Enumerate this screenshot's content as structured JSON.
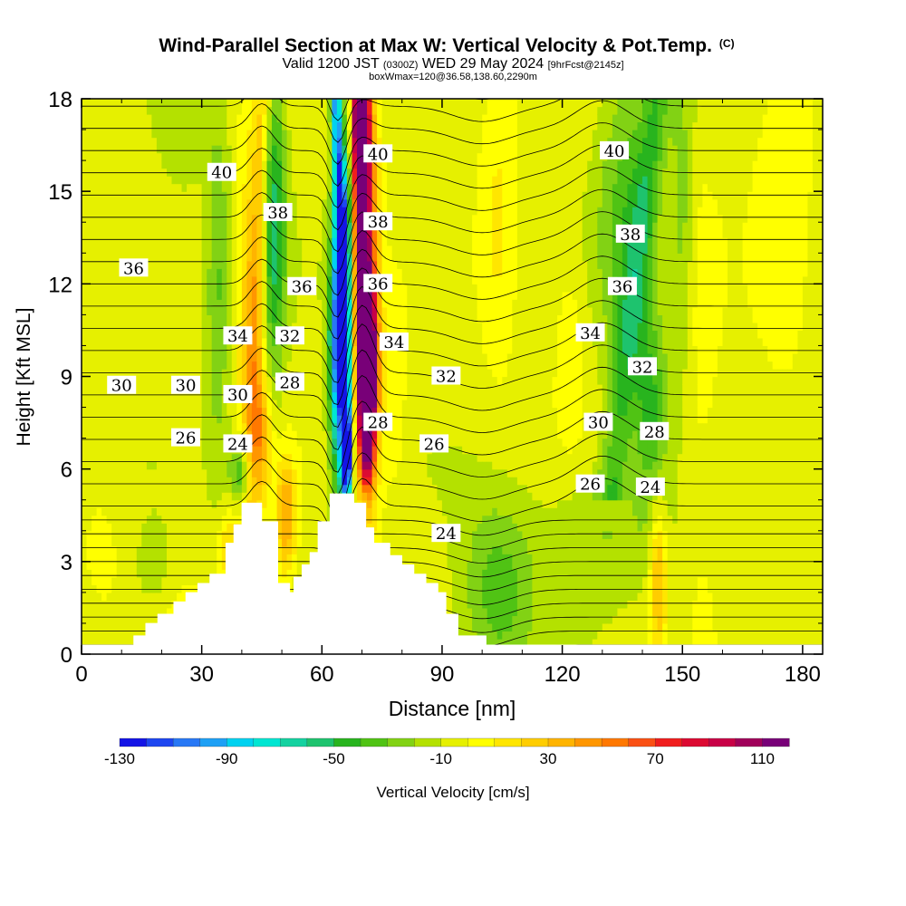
{
  "chart_data": {
    "type": "heatmap",
    "title": "Wind-Parallel Section at Max W: Vertical Velocity & Pot.Temp.",
    "title_mark": "(C)",
    "subtitle_main_a": "Valid 1200 JST ",
    "subtitle_small_a": "(0300Z)",
    "subtitle_main_b": " WED 29 May 2024 ",
    "subtitle_small_b": "[9hrFcst@2145z]",
    "subtitle2": "boxWmax=120@36.58,138.60,2290m",
    "xlabel": "Distance [nm]",
    "ylabel": "Height [Kft MSL]",
    "xlim": [
      0,
      185
    ],
    "ylim": [
      0,
      18
    ],
    "x_ticks": [
      "0",
      "30",
      "60",
      "90",
      "120",
      "150",
      "180"
    ],
    "x_tick_values": [
      0,
      30,
      60,
      90,
      120,
      150,
      180
    ],
    "y_ticks": [
      "0",
      "3",
      "6",
      "9",
      "12",
      "15",
      "18"
    ],
    "y_tick_values": [
      0,
      3,
      6,
      9,
      12,
      15,
      18
    ],
    "colorbar": {
      "label": "Vertical Velocity [cm/s]",
      "range": [
        -130,
        120
      ],
      "step": 10,
      "tick_labels": [
        "-130",
        "-90",
        "-50",
        "-10",
        "30",
        "70",
        "110"
      ],
      "tick_values": [
        -130,
        -90,
        -50,
        -10,
        30,
        70,
        110
      ]
    },
    "terrain_profile_nm_kft": [
      [
        0,
        0.3
      ],
      [
        13,
        0.3
      ],
      [
        13,
        0.6
      ],
      [
        16,
        0.6
      ],
      [
        16,
        1.0
      ],
      [
        19,
        1.0
      ],
      [
        19,
        1.3
      ],
      [
        23,
        1.3
      ],
      [
        23,
        1.7
      ],
      [
        26,
        1.7
      ],
      [
        26,
        2.0
      ],
      [
        29,
        2.0
      ],
      [
        29,
        2.3
      ],
      [
        32,
        2.3
      ],
      [
        32,
        2.6
      ],
      [
        36,
        2.6
      ],
      [
        36,
        3.6
      ],
      [
        38,
        3.6
      ],
      [
        38,
        4.2
      ],
      [
        40,
        4.2
      ],
      [
        40,
        4.9
      ],
      [
        45,
        4.9
      ],
      [
        45,
        4.3
      ],
      [
        49,
        4.3
      ],
      [
        49,
        2.3
      ],
      [
        52,
        2.3
      ],
      [
        52,
        2.0
      ],
      [
        53,
        2.0
      ],
      [
        53,
        2.5
      ],
      [
        55,
        2.5
      ],
      [
        55,
        2.9
      ],
      [
        57,
        2.9
      ],
      [
        57,
        3.3
      ],
      [
        59,
        3.3
      ],
      [
        59,
        4.3
      ],
      [
        62,
        4.3
      ],
      [
        62,
        5.2
      ],
      [
        68,
        5.2
      ],
      [
        68,
        4.9
      ],
      [
        71,
        4.9
      ],
      [
        71,
        4.1
      ],
      [
        73,
        4.1
      ],
      [
        73,
        3.6
      ],
      [
        77,
        3.6
      ],
      [
        77,
        3.2
      ],
      [
        80,
        3.2
      ],
      [
        80,
        2.9
      ],
      [
        83,
        2.9
      ],
      [
        83,
        2.6
      ],
      [
        86,
        2.6
      ],
      [
        86,
        2.3
      ],
      [
        89,
        2.3
      ],
      [
        89,
        2.0
      ],
      [
        91,
        2.0
      ],
      [
        91,
        1.3
      ],
      [
        94,
        1.3
      ],
      [
        94,
        0.6
      ],
      [
        101,
        0.6
      ],
      [
        101,
        0.3
      ],
      [
        185,
        0.3
      ]
    ],
    "updraft_bands": [
      {
        "x": 5,
        "z": 3.5,
        "wx": 5,
        "wz": 2.0,
        "w": 10
      },
      {
        "x": 27,
        "z": 1.2,
        "wx": 8,
        "wz": 1.5,
        "w": 10
      },
      {
        "x": 37,
        "z": 3.5,
        "wx": 3,
        "wz": 1.5,
        "w": 25
      },
      {
        "x": 42,
        "z": 11,
        "wx": 3.5,
        "wz": 6,
        "w": 30
      },
      {
        "x": 51,
        "z": 4.5,
        "wx": 2.5,
        "wz": 2,
        "w": 45
      },
      {
        "x": 45,
        "z": 7,
        "wx": 2.5,
        "wz": 2,
        "w": 35
      },
      {
        "x": 71,
        "z": 12,
        "wx": 3,
        "wz": 7,
        "w": 90
      },
      {
        "x": 72,
        "z": 9,
        "wx": 2,
        "wz": 2.5,
        "w": 110
      },
      {
        "x": 70,
        "z": 17,
        "wx": 2,
        "wz": 2,
        "w": 90
      },
      {
        "x": 78,
        "z": 8,
        "wx": 4,
        "wz": 4,
        "w": 12
      },
      {
        "x": 104,
        "z": 14,
        "wx": 5,
        "wz": 5,
        "w": 18
      },
      {
        "x": 122,
        "z": 10,
        "wx": 4,
        "wz": 3,
        "w": 15
      },
      {
        "x": 144,
        "z": 2.5,
        "wx": 2,
        "wz": 2.5,
        "w": 40
      },
      {
        "x": 155,
        "z": 9,
        "wx": 5,
        "wz": 8,
        "w": 10
      },
      {
        "x": 175,
        "z": 14,
        "wx": 8,
        "wz": 5,
        "w": 15
      }
    ],
    "downdraft_bands": [
      {
        "x": 34,
        "z": 12,
        "wx": 3,
        "wz": 6,
        "w": -25
      },
      {
        "x": 40,
        "z": 5.8,
        "wx": 3,
        "wz": 1.2,
        "w": -45
      },
      {
        "x": 48,
        "z": 14,
        "wx": 3,
        "wz": 5,
        "w": -50
      },
      {
        "x": 64,
        "z": 10,
        "wx": 2.2,
        "wz": 4,
        "w": -110
      },
      {
        "x": 66,
        "z": 13,
        "wx": 1.6,
        "wz": 4,
        "w": -70
      },
      {
        "x": 66,
        "z": 6,
        "wx": 1.5,
        "wz": 1.5,
        "w": -90
      },
      {
        "x": 104,
        "z": 2,
        "wx": 9,
        "wz": 3,
        "w": -30
      },
      {
        "x": 130,
        "z": 4,
        "wx": 14,
        "wz": 2,
        "w": -15
      },
      {
        "x": 136,
        "z": 14,
        "wx": 7,
        "wz": 5,
        "w": -30
      },
      {
        "x": 142,
        "z": 8,
        "wx": 4,
        "wz": 3,
        "w": -35
      },
      {
        "x": 150,
        "z": 14,
        "wx": 3,
        "wz": 5,
        "w": -20
      },
      {
        "x": 25,
        "z": 17,
        "wx": 5,
        "wz": 2,
        "w": -12
      },
      {
        "x": 18,
        "z": 2.5,
        "wx": 5,
        "wz": 1.5,
        "w": -10
      }
    ],
    "theta_contours": {
      "levels_start": 14,
      "levels_end": 48,
      "interval": 1
    },
    "contour_labels": [
      {
        "text": "40",
        "x": 35,
        "z": 15.6
      },
      {
        "text": "38",
        "x": 49,
        "z": 14.3
      },
      {
        "text": "36",
        "x": 13,
        "z": 12.5
      },
      {
        "text": "36",
        "x": 55,
        "z": 11.9
      },
      {
        "text": "34",
        "x": 39,
        "z": 10.3
      },
      {
        "text": "32",
        "x": 52,
        "z": 10.3
      },
      {
        "text": "30",
        "x": 10,
        "z": 8.7
      },
      {
        "text": "30",
        "x": 26,
        "z": 8.7
      },
      {
        "text": "30",
        "x": 39,
        "z": 8.4
      },
      {
        "text": "28",
        "x": 52,
        "z": 8.8
      },
      {
        "text": "26",
        "x": 26,
        "z": 7.0
      },
      {
        "text": "24",
        "x": 39,
        "z": 6.8
      },
      {
        "text": "40",
        "x": 74,
        "z": 16.2
      },
      {
        "text": "38",
        "x": 74,
        "z": 14.0
      },
      {
        "text": "36",
        "x": 74,
        "z": 12.0
      },
      {
        "text": "34",
        "x": 78,
        "z": 10.1
      },
      {
        "text": "28",
        "x": 74,
        "z": 7.5
      },
      {
        "text": "32",
        "x": 91,
        "z": 9.0
      },
      {
        "text": "26",
        "x": 88,
        "z": 6.8
      },
      {
        "text": "24",
        "x": 91,
        "z": 3.9
      },
      {
        "text": "40",
        "x": 133,
        "z": 16.3
      },
      {
        "text": "38",
        "x": 137,
        "z": 13.6
      },
      {
        "text": "36",
        "x": 135,
        "z": 11.9
      },
      {
        "text": "34",
        "x": 127,
        "z": 10.4
      },
      {
        "text": "32",
        "x": 140,
        "z": 9.3
      },
      {
        "text": "30",
        "x": 129,
        "z": 7.5
      },
      {
        "text": "28",
        "x": 143,
        "z": 7.2
      },
      {
        "text": "26",
        "x": 127,
        "z": 5.5
      },
      {
        "text": "24",
        "x": 142,
        "z": 5.4
      }
    ]
  }
}
